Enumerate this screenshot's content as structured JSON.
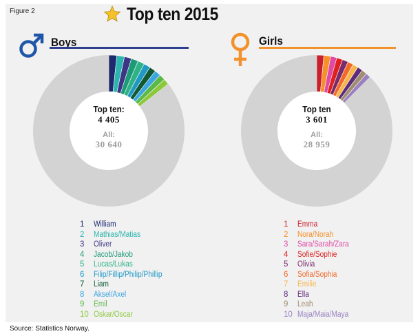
{
  "figure_label": "Figure 2",
  "title": "Top ten 2015",
  "source": "Source: Statistics Norway.",
  "colors": {
    "boys_rule": "#2e3f8f",
    "girls_rule": "#f2922c",
    "boys_symbol": "#1f56a8",
    "girls_symbol": "#f2922c",
    "star": "#f6c22a",
    "rest": "#d3d3d3"
  },
  "chart_data": [
    {
      "type": "pie",
      "name": "Boys",
      "center_label": "Top ten:",
      "center_value": "4 405",
      "all_label": "All:",
      "all_value": "30 640",
      "total": 30640,
      "series": [
        {
          "rank": "1",
          "name": "William",
          "value": 524,
          "color": "#1c2a6e"
        },
        {
          "rank": "2",
          "name": "Mathias/Matias",
          "value": 494,
          "color": "#2cb5ae"
        },
        {
          "rank": "3",
          "name": "Oliver",
          "value": 466,
          "color": "#3d3585"
        },
        {
          "rank": "4",
          "name": "Jacob/Jakob",
          "value": 454,
          "color": "#1d9a77"
        },
        {
          "rank": "5",
          "name": "Lucas/Lukas",
          "value": 440,
          "color": "#2fb386"
        },
        {
          "rank": "6",
          "name": "Filip/Fillip/Philip/Phillip",
          "value": 428,
          "color": "#2199c4"
        },
        {
          "rank": "7",
          "name": "Liam",
          "value": 418,
          "color": "#0f5a32"
        },
        {
          "rank": "8",
          "name": "Aksel/Axel",
          "value": 405,
          "color": "#3ca6e0"
        },
        {
          "rank": "9",
          "name": "Emil",
          "value": 392,
          "color": "#5cb848"
        },
        {
          "rank": "10",
          "name": "Oskar/Oscar",
          "value": 384,
          "color": "#8cc83c"
        }
      ]
    },
    {
      "type": "pie",
      "name": "Girls",
      "center_label": "Top ten",
      "center_value": "3 601",
      "all_label": "All:",
      "all_value": "28 959",
      "total": 28959,
      "series": [
        {
          "rank": "1",
          "name": "Emma",
          "value": 439,
          "color": "#c8202c"
        },
        {
          "rank": "2",
          "name": "Nora/Norah",
          "value": 416,
          "color": "#f5902a"
        },
        {
          "rank": "3",
          "name": "Sara/Sarah/Zara",
          "value": 383,
          "color": "#e04aa4"
        },
        {
          "rank": "4",
          "name": "Sofie/Sophie",
          "value": 370,
          "color": "#e0201e"
        },
        {
          "rank": "5",
          "name": "Olivia",
          "value": 357,
          "color": "#7a2c6a"
        },
        {
          "rank": "6",
          "name": "Sofia/Sophia",
          "value": 348,
          "color": "#f26a2a"
        },
        {
          "rank": "7",
          "name": "Emilie",
          "value": 336,
          "color": "#f7b64a"
        },
        {
          "rank": "8",
          "name": "Ella",
          "value": 329,
          "color": "#5e2a7a"
        },
        {
          "rank": "9",
          "name": "Leah",
          "value": 318,
          "color": "#a08c70"
        },
        {
          "rank": "10",
          "name": "Maja/Maia/Maya",
          "value": 305,
          "color": "#9a82c0"
        }
      ]
    }
  ]
}
